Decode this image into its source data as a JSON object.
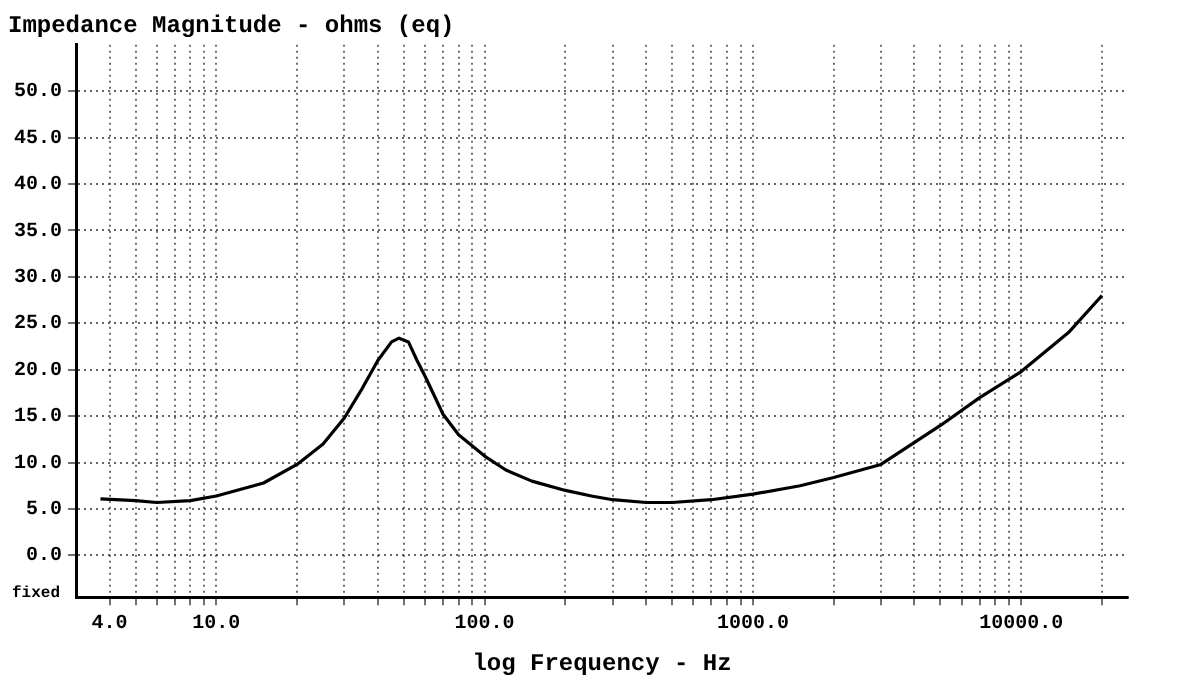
{
  "chart_data": {
    "type": "line",
    "title": "Impedance Magnitude - ohms (eq)",
    "xlabel": "log Frequency - Hz",
    "log": "x",
    "grid": true,
    "legend": false,
    "marker": "none",
    "line_style": "solid",
    "annotations": [
      "fixed"
    ],
    "xlim": [
      3,
      25000
    ],
    "xticks": [
      {
        "value": 4,
        "label": "4.0"
      },
      {
        "value": 5,
        "label": null
      },
      {
        "value": 6,
        "label": null
      },
      {
        "value": 7,
        "label": null
      },
      {
        "value": 8,
        "label": null
      },
      {
        "value": 9,
        "label": null
      },
      {
        "value": 10,
        "label": "10.0"
      },
      {
        "value": 20,
        "label": null
      },
      {
        "value": 30,
        "label": null
      },
      {
        "value": 40,
        "label": null
      },
      {
        "value": 50,
        "label": null
      },
      {
        "value": 60,
        "label": null
      },
      {
        "value": 70,
        "label": null
      },
      {
        "value": 80,
        "label": null
      },
      {
        "value": 90,
        "label": null
      },
      {
        "value": 100,
        "label": "100.0"
      },
      {
        "value": 200,
        "label": null
      },
      {
        "value": 300,
        "label": null
      },
      {
        "value": 400,
        "label": null
      },
      {
        "value": 500,
        "label": null
      },
      {
        "value": 600,
        "label": null
      },
      {
        "value": 700,
        "label": null
      },
      {
        "value": 800,
        "label": null
      },
      {
        "value": 900,
        "label": null
      },
      {
        "value": 1000,
        "label": "1000.0"
      },
      {
        "value": 2000,
        "label": null
      },
      {
        "value": 3000,
        "label": null
      },
      {
        "value": 4000,
        "label": null
      },
      {
        "value": 5000,
        "label": null
      },
      {
        "value": 6000,
        "label": null
      },
      {
        "value": 7000,
        "label": null
      },
      {
        "value": 8000,
        "label": null
      },
      {
        "value": 9000,
        "label": null
      },
      {
        "value": 10000,
        "label": "10000.0"
      },
      {
        "value": 20000,
        "label": null
      }
    ],
    "ylim": [
      -4.5,
      55
    ],
    "yticks": [
      {
        "value": 0,
        "label": "0.0"
      },
      {
        "value": 5,
        "label": "5.0"
      },
      {
        "value": 10,
        "label": "10.0"
      },
      {
        "value": 15,
        "label": "15.0"
      },
      {
        "value": 20,
        "label": "20.0"
      },
      {
        "value": 25,
        "label": "25.0"
      },
      {
        "value": 30,
        "label": "30.0"
      },
      {
        "value": 35,
        "label": "35.0"
      },
      {
        "value": 40,
        "label": "40.0"
      },
      {
        "value": 45,
        "label": "45.0"
      },
      {
        "value": 50,
        "label": "50.0"
      }
    ],
    "series": [
      {
        "color": "#000000",
        "x": [
          3.7,
          5,
          6,
          8,
          10,
          15,
          20,
          25,
          30,
          35,
          40,
          45,
          48,
          52,
          56,
          60,
          70,
          80,
          100,
          120,
          150,
          200,
          250,
          300,
          400,
          500,
          700,
          1000,
          1500,
          2000,
          3000,
          5000,
          7000,
          10000,
          15000,
          20000
        ],
        "values": [
          6.1,
          5.9,
          5.7,
          5.9,
          6.4,
          7.8,
          9.8,
          12,
          14.8,
          18,
          21,
          23,
          23.4,
          23,
          21,
          19.3,
          15.2,
          13,
          10.7,
          9.2,
          8,
          7,
          6.4,
          6,
          5.7,
          5.7,
          6,
          6.6,
          7.5,
          8.4,
          9.8,
          14,
          17,
          19.8,
          24,
          28
        ]
      }
    ]
  }
}
